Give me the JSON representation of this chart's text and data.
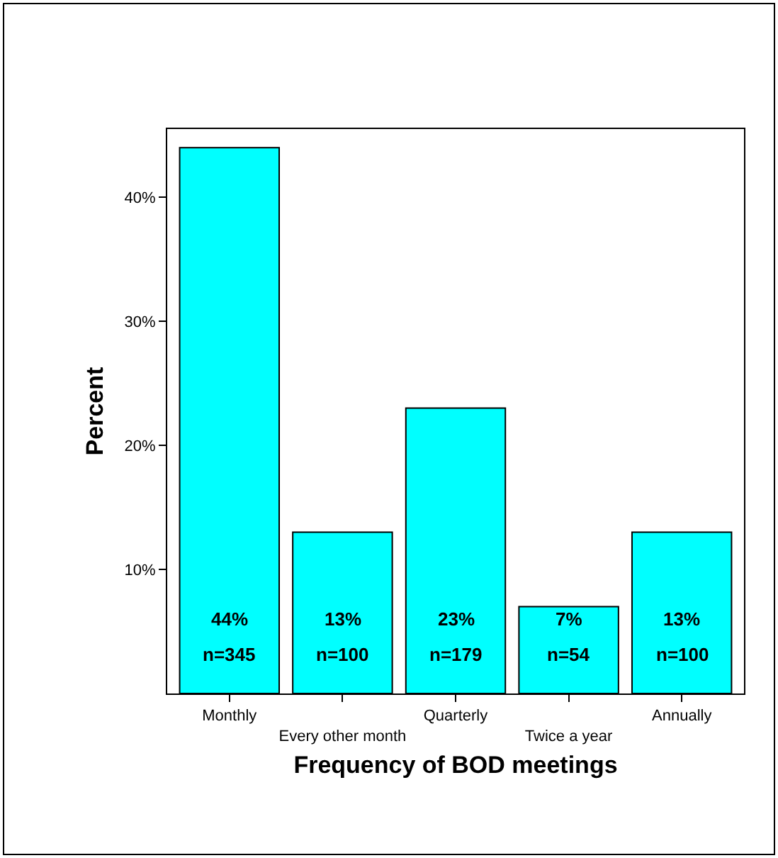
{
  "chart_data": {
    "type": "bar",
    "xlabel": "Frequency of BOD meetings",
    "ylabel": "Percent",
    "categories": [
      "Monthly",
      "Every other month",
      "Quarterly",
      "Twice a year",
      "Annually"
    ],
    "values": [
      44,
      13,
      23,
      7,
      13
    ],
    "color": "#00ffff",
    "value_labels": [
      "44%",
      "13%",
      "23%",
      "7%",
      "13%"
    ],
    "annotations": [
      "n=345",
      "n=100",
      "n=179",
      "n=54",
      "n=100"
    ],
    "ylim": [
      0,
      45.5
    ],
    "yticks": [
      {
        "value": 10,
        "label": "10%"
      },
      {
        "value": 20,
        "label": "20%"
      },
      {
        "value": 30,
        "label": "30%"
      },
      {
        "value": 40,
        "label": "40%"
      }
    ],
    "grid": false,
    "legend": false
  }
}
